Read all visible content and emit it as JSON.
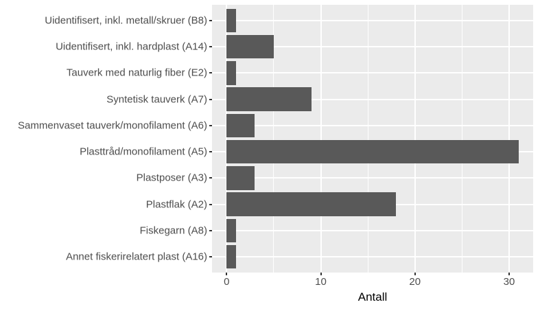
{
  "chart_data": {
    "type": "bar",
    "orientation": "horizontal",
    "title": "",
    "xlabel": "Antall",
    "ylabel": "",
    "categories": [
      "Uidentifisert, inkl. metall/skruer (B8)",
      "Uidentifisert, inkl. hardplast (A14)",
      "Tauverk med naturlig fiber (E2)",
      "Syntetisk tauverk (A7)",
      "Sammenvaset tauverk/monofilament (A6)",
      "Plasttråd/monofilament (A5)",
      "Plastposer (A3)",
      "Plastflak (A2)",
      "Fiskegarn (A8)",
      "Annet fiskerirelatert plast (A16)"
    ],
    "values": [
      1,
      5,
      1,
      9,
      3,
      31,
      3,
      18,
      1,
      1
    ],
    "category_order": "top-to-bottom",
    "xlim": [
      -1.55,
      32.55
    ],
    "x_major_ticks": [
      0,
      10,
      20,
      30
    ],
    "x_minor_gridlines": [
      5,
      15,
      25
    ],
    "legend": "none",
    "grid": "white major and minor vertical lines, white major horizontal lines at category centers",
    "style": {
      "bar_color": "#595959",
      "panel_background": "#EBEBEB",
      "grid_color": "#FFFFFF",
      "axis_text_color": "#4D4D4D",
      "axis_title_color": "#000000",
      "tick_mark_color": "#333333",
      "plot_background": "#FFFFFF"
    }
  }
}
